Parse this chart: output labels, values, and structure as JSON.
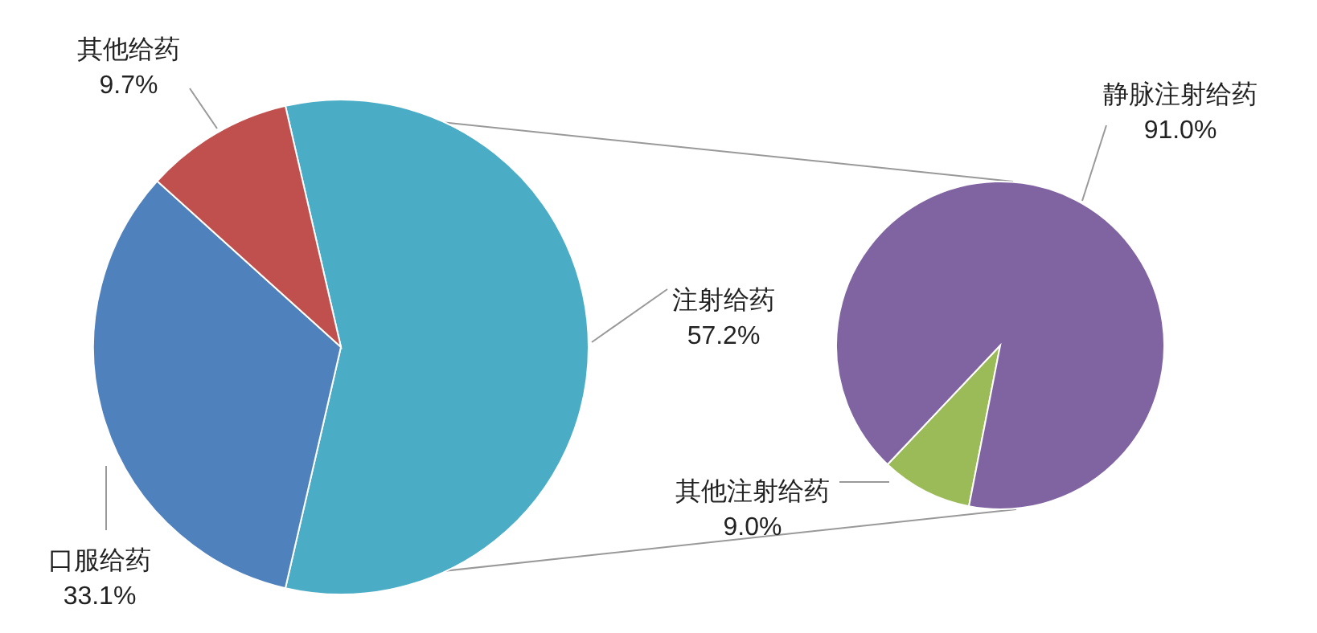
{
  "chart_data": [
    {
      "type": "pie",
      "categories": [
        "注射给药",
        "口服给药",
        "其他给药"
      ],
      "values": [
        57.2,
        33.1,
        9.7
      ],
      "colors": [
        "#4bacc6",
        "#4f81bd",
        "#c0504d"
      ],
      "value_labels": [
        "57.2%",
        "33.1%",
        "9.7%"
      ]
    },
    {
      "type": "pie",
      "categories": [
        "其他注射给药",
        "静脉注射给药"
      ],
      "values": [
        9.0,
        91.0
      ],
      "colors": [
        "#9bbb59",
        "#8064a2"
      ],
      "value_labels": [
        "9.0%",
        "91.0%"
      ]
    }
  ]
}
